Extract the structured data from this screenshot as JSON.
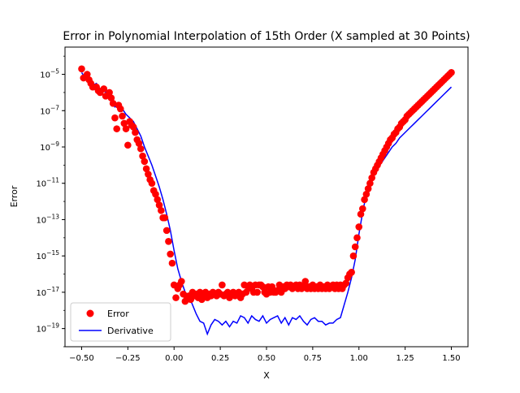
{
  "chart_data": {
    "type": "scatter",
    "title": "Error in Polynomial Interpolation of 15th Order (X sampled at 30 Points)",
    "xlabel": "X",
    "ylabel": "Error",
    "x_range": [
      -0.59,
      1.59
    ],
    "y_scale": "log",
    "y_range_log10": [
      -20.0,
      -3.5
    ],
    "grid": false,
    "legend_placement": "lower-left",
    "x_ticks": [
      {
        "value": -0.5,
        "label": "−0.50"
      },
      {
        "value": -0.25,
        "label": "−0.25"
      },
      {
        "value": 0.0,
        "label": "0.00"
      },
      {
        "value": 0.25,
        "label": "0.25"
      },
      {
        "value": 0.5,
        "label": "0.50"
      },
      {
        "value": 0.75,
        "label": "0.75"
      },
      {
        "value": 1.0,
        "label": "1.00"
      },
      {
        "value": 1.25,
        "label": "1.25"
      },
      {
        "value": 1.5,
        "label": "1.50"
      }
    ],
    "y_ticks": [
      {
        "exp": -5,
        "base": "10",
        "sup": "−5"
      },
      {
        "exp": -7,
        "base": "10",
        "sup": "−7"
      },
      {
        "exp": -9,
        "base": "10",
        "sup": "−9"
      },
      {
        "exp": -11,
        "base": "10",
        "sup": "−11"
      },
      {
        "exp": -13,
        "base": "10",
        "sup": "−13"
      },
      {
        "exp": -15,
        "base": "10",
        "sup": "−15"
      },
      {
        "exp": -17,
        "base": "10",
        "sup": "−17"
      },
      {
        "exp": -19,
        "base": "10",
        "sup": "−19"
      }
    ],
    "series": [
      {
        "name": "Error",
        "kind": "scatter",
        "color": "#ff0000",
        "points": [
          [
            -0.5,
            -4.7
          ],
          [
            -0.49,
            -5.2
          ],
          [
            -0.47,
            -5.0
          ],
          [
            -0.46,
            -5.3
          ],
          [
            -0.45,
            -5.5
          ],
          [
            -0.44,
            -5.7
          ],
          [
            -0.42,
            -5.7
          ],
          [
            -0.41,
            -5.9
          ],
          [
            -0.4,
            -6.0
          ],
          [
            -0.38,
            -5.8
          ],
          [
            -0.37,
            -6.2
          ],
          [
            -0.35,
            -6.0
          ],
          [
            -0.34,
            -6.3
          ],
          [
            -0.33,
            -6.6
          ],
          [
            -0.32,
            -7.4
          ],
          [
            -0.31,
            -8.0
          ],
          [
            -0.3,
            -6.7
          ],
          [
            -0.29,
            -6.9
          ],
          [
            -0.28,
            -7.3
          ],
          [
            -0.27,
            -7.7
          ],
          [
            -0.26,
            -8.0
          ],
          [
            -0.25,
            -8.9
          ],
          [
            -0.24,
            -7.6
          ],
          [
            -0.23,
            -7.8
          ],
          [
            -0.22,
            -7.9
          ],
          [
            -0.21,
            -8.2
          ],
          [
            -0.2,
            -8.6
          ],
          [
            -0.19,
            -8.8
          ],
          [
            -0.18,
            -9.1
          ],
          [
            -0.17,
            -9.5
          ],
          [
            -0.16,
            -9.8
          ],
          [
            -0.15,
            -10.2
          ],
          [
            -0.14,
            -10.5
          ],
          [
            -0.13,
            -10.8
          ],
          [
            -0.12,
            -11.0
          ],
          [
            -0.11,
            -11.4
          ],
          [
            -0.1,
            -11.6
          ],
          [
            -0.09,
            -11.9
          ],
          [
            -0.08,
            -12.2
          ],
          [
            -0.07,
            -12.5
          ],
          [
            -0.06,
            -12.9
          ],
          [
            -0.05,
            -12.9
          ],
          [
            -0.04,
            -13.6
          ],
          [
            -0.03,
            -14.2
          ],
          [
            -0.02,
            -14.9
          ],
          [
            -0.01,
            -15.4
          ],
          [
            0.0,
            -16.6
          ],
          [
            0.01,
            -17.3
          ],
          [
            0.02,
            -16.8
          ],
          [
            0.03,
            -16.6
          ],
          [
            0.04,
            -16.4
          ],
          [
            0.05,
            -17.1
          ],
          [
            0.06,
            -17.5
          ],
          [
            0.07,
            -17.3
          ],
          [
            0.08,
            -17.2
          ],
          [
            0.09,
            -17.4
          ],
          [
            0.1,
            -17.0
          ],
          [
            0.11,
            -17.2
          ],
          [
            0.12,
            -17.1
          ],
          [
            0.13,
            -17.3
          ],
          [
            0.14,
            -17.0
          ],
          [
            0.15,
            -17.4
          ],
          [
            0.16,
            -17.2
          ],
          [
            0.17,
            -17.0
          ],
          [
            0.18,
            -17.3
          ],
          [
            0.19,
            -17.1
          ],
          [
            0.2,
            -17.2
          ],
          [
            0.21,
            -17.0
          ],
          [
            0.22,
            -17.1
          ],
          [
            0.23,
            -17.2
          ],
          [
            0.24,
            -17.0
          ],
          [
            0.25,
            -17.1
          ],
          [
            0.26,
            -16.6
          ],
          [
            0.27,
            -17.2
          ],
          [
            0.28,
            -17.1
          ],
          [
            0.29,
            -17.0
          ],
          [
            0.3,
            -17.3
          ],
          [
            0.31,
            -17.1
          ],
          [
            0.32,
            -17.0
          ],
          [
            0.33,
            -17.2
          ],
          [
            0.34,
            -17.1
          ],
          [
            0.35,
            -17.0
          ],
          [
            0.36,
            -17.3
          ],
          [
            0.37,
            -17.1
          ],
          [
            0.38,
            -16.6
          ],
          [
            0.39,
            -17.0
          ],
          [
            0.4,
            -16.7
          ],
          [
            0.41,
            -16.6
          ],
          [
            0.42,
            -16.8
          ],
          [
            0.43,
            -17.0
          ],
          [
            0.44,
            -16.6
          ],
          [
            0.45,
            -17.0
          ],
          [
            0.46,
            -16.6
          ],
          [
            0.47,
            -16.6
          ],
          [
            0.48,
            -16.7
          ],
          [
            0.49,
            -17.0
          ],
          [
            0.5,
            -17.1
          ],
          [
            0.51,
            -16.7
          ],
          [
            0.52,
            -17.0
          ],
          [
            0.53,
            -16.7
          ],
          [
            0.54,
            -17.0
          ],
          [
            0.55,
            -17.0
          ],
          [
            0.56,
            -16.9
          ],
          [
            0.57,
            -16.6
          ],
          [
            0.58,
            -17.0
          ],
          [
            0.59,
            -16.7
          ],
          [
            0.6,
            -16.8
          ],
          [
            0.61,
            -16.6
          ],
          [
            0.62,
            -16.7
          ],
          [
            0.63,
            -16.6
          ],
          [
            0.64,
            -16.8
          ],
          [
            0.65,
            -16.7
          ],
          [
            0.66,
            -16.6
          ],
          [
            0.67,
            -16.8
          ],
          [
            0.68,
            -16.6
          ],
          [
            0.69,
            -16.8
          ],
          [
            0.7,
            -16.7
          ],
          [
            0.71,
            -16.4
          ],
          [
            0.72,
            -16.8
          ],
          [
            0.73,
            -16.7
          ],
          [
            0.74,
            -16.8
          ],
          [
            0.75,
            -16.6
          ],
          [
            0.76,
            -16.8
          ],
          [
            0.77,
            -16.7
          ],
          [
            0.78,
            -16.8
          ],
          [
            0.79,
            -16.6
          ],
          [
            0.8,
            -16.8
          ],
          [
            0.81,
            -16.7
          ],
          [
            0.82,
            -16.8
          ],
          [
            0.83,
            -16.6
          ],
          [
            0.84,
            -16.8
          ],
          [
            0.85,
            -16.7
          ],
          [
            0.86,
            -16.6
          ],
          [
            0.87,
            -16.8
          ],
          [
            0.88,
            -16.6
          ],
          [
            0.89,
            -16.8
          ],
          [
            0.9,
            -16.6
          ],
          [
            0.91,
            -16.8
          ],
          [
            0.92,
            -16.6
          ],
          [
            0.93,
            -16.5
          ],
          [
            0.94,
            -16.2
          ],
          [
            0.95,
            -16.0
          ],
          [
            0.96,
            -15.9
          ],
          [
            0.97,
            -15.0
          ],
          [
            0.98,
            -14.5
          ],
          [
            0.99,
            -14.0
          ],
          [
            1.0,
            -13.4
          ],
          [
            1.01,
            -12.7
          ],
          [
            1.02,
            -12.4
          ],
          [
            1.03,
            -11.9
          ],
          [
            1.04,
            -11.6
          ],
          [
            1.05,
            -11.3
          ],
          [
            1.06,
            -11.0
          ],
          [
            1.07,
            -10.7
          ],
          [
            1.08,
            -10.4
          ],
          [
            1.09,
            -10.2
          ],
          [
            1.1,
            -10.0
          ],
          [
            1.11,
            -9.8
          ],
          [
            1.12,
            -9.6
          ],
          [
            1.13,
            -9.4
          ],
          [
            1.14,
            -9.2
          ],
          [
            1.15,
            -9.0
          ],
          [
            1.16,
            -8.8
          ],
          [
            1.17,
            -8.6
          ],
          [
            1.18,
            -8.5
          ],
          [
            1.19,
            -8.3
          ],
          [
            1.2,
            -8.2
          ],
          [
            1.21,
            -8.0
          ],
          [
            1.22,
            -7.9
          ],
          [
            1.23,
            -7.7
          ],
          [
            1.24,
            -7.6
          ],
          [
            1.25,
            -7.5
          ],
          [
            1.26,
            -7.3
          ],
          [
            1.27,
            -7.2
          ],
          [
            1.28,
            -7.1
          ],
          [
            1.29,
            -7.0
          ],
          [
            1.3,
            -6.9
          ],
          [
            1.31,
            -6.8
          ],
          [
            1.32,
            -6.7
          ],
          [
            1.33,
            -6.6
          ],
          [
            1.34,
            -6.5
          ],
          [
            1.35,
            -6.4
          ],
          [
            1.36,
            -6.3
          ],
          [
            1.37,
            -6.2
          ],
          [
            1.38,
            -6.1
          ],
          [
            1.39,
            -6.0
          ],
          [
            1.4,
            -5.9
          ],
          [
            1.41,
            -5.8
          ],
          [
            1.42,
            -5.7
          ],
          [
            1.43,
            -5.6
          ],
          [
            1.44,
            -5.5
          ],
          [
            1.45,
            -5.4
          ],
          [
            1.46,
            -5.3
          ],
          [
            1.47,
            -5.2
          ],
          [
            1.48,
            -5.1
          ],
          [
            1.49,
            -5.0
          ],
          [
            1.5,
            -4.9
          ]
        ]
      },
      {
        "name": "Derivative",
        "kind": "line",
        "color": "#0000ff",
        "points": [
          [
            -0.5,
            -4.9
          ],
          [
            -0.48,
            -5.2
          ],
          [
            -0.46,
            -5.1
          ],
          [
            -0.44,
            -5.6
          ],
          [
            -0.42,
            -5.5
          ],
          [
            -0.4,
            -5.9
          ],
          [
            -0.38,
            -5.8
          ],
          [
            -0.36,
            -6.2
          ],
          [
            -0.34,
            -6.5
          ],
          [
            -0.32,
            -6.8
          ],
          [
            -0.3,
            -6.7
          ],
          [
            -0.28,
            -6.9
          ],
          [
            -0.26,
            -7.2
          ],
          [
            -0.24,
            -7.4
          ],
          [
            -0.22,
            -7.6
          ],
          [
            -0.2,
            -8.0
          ],
          [
            -0.18,
            -8.4
          ],
          [
            -0.16,
            -9.0
          ],
          [
            -0.14,
            -9.5
          ],
          [
            -0.12,
            -10.0
          ],
          [
            -0.1,
            -10.6
          ],
          [
            -0.08,
            -11.2
          ],
          [
            -0.06,
            -11.9
          ],
          [
            -0.04,
            -12.7
          ],
          [
            -0.02,
            -13.6
          ],
          [
            0.0,
            -14.7
          ],
          [
            0.02,
            -15.7
          ],
          [
            0.04,
            -16.4
          ],
          [
            0.06,
            -17.0
          ],
          [
            0.08,
            -17.2
          ],
          [
            0.1,
            -17.7
          ],
          [
            0.12,
            -18.2
          ],
          [
            0.14,
            -18.6
          ],
          [
            0.16,
            -18.7
          ],
          [
            0.18,
            -19.3
          ],
          [
            0.2,
            -18.8
          ],
          [
            0.22,
            -18.5
          ],
          [
            0.24,
            -18.6
          ],
          [
            0.26,
            -18.8
          ],
          [
            0.28,
            -18.6
          ],
          [
            0.3,
            -18.9
          ],
          [
            0.32,
            -18.6
          ],
          [
            0.34,
            -18.7
          ],
          [
            0.36,
            -18.3
          ],
          [
            0.38,
            -18.4
          ],
          [
            0.4,
            -18.7
          ],
          [
            0.42,
            -18.3
          ],
          [
            0.44,
            -18.5
          ],
          [
            0.46,
            -18.6
          ],
          [
            0.48,
            -18.3
          ],
          [
            0.5,
            -18.7
          ],
          [
            0.52,
            -18.5
          ],
          [
            0.54,
            -18.4
          ],
          [
            0.56,
            -18.3
          ],
          [
            0.58,
            -18.7
          ],
          [
            0.6,
            -18.4
          ],
          [
            0.62,
            -18.8
          ],
          [
            0.64,
            -18.4
          ],
          [
            0.66,
            -18.5
          ],
          [
            0.68,
            -18.3
          ],
          [
            0.7,
            -18.6
          ],
          [
            0.72,
            -18.8
          ],
          [
            0.74,
            -18.5
          ],
          [
            0.76,
            -18.4
          ],
          [
            0.78,
            -18.6
          ],
          [
            0.8,
            -18.6
          ],
          [
            0.82,
            -18.8
          ],
          [
            0.84,
            -18.7
          ],
          [
            0.86,
            -18.7
          ],
          [
            0.88,
            -18.5
          ],
          [
            0.9,
            -18.4
          ],
          [
            0.92,
            -17.7
          ],
          [
            0.94,
            -17.0
          ],
          [
            0.96,
            -16.2
          ],
          [
            0.98,
            -15.2
          ],
          [
            1.0,
            -13.8
          ],
          [
            1.02,
            -12.6
          ],
          [
            1.04,
            -11.6
          ],
          [
            1.06,
            -11.0
          ],
          [
            1.08,
            -10.6
          ],
          [
            1.1,
            -10.2
          ],
          [
            1.12,
            -9.9
          ],
          [
            1.14,
            -9.6
          ],
          [
            1.16,
            -9.3
          ],
          [
            1.18,
            -9.0
          ],
          [
            1.2,
            -8.8
          ],
          [
            1.22,
            -8.5
          ],
          [
            1.24,
            -8.3
          ],
          [
            1.26,
            -8.1
          ],
          [
            1.28,
            -7.9
          ],
          [
            1.3,
            -7.7
          ],
          [
            1.32,
            -7.5
          ],
          [
            1.34,
            -7.3
          ],
          [
            1.36,
            -7.1
          ],
          [
            1.38,
            -6.9
          ],
          [
            1.4,
            -6.7
          ],
          [
            1.42,
            -6.5
          ],
          [
            1.44,
            -6.3
          ],
          [
            1.46,
            -6.1
          ],
          [
            1.48,
            -5.9
          ],
          [
            1.5,
            -5.7
          ]
        ]
      }
    ]
  }
}
